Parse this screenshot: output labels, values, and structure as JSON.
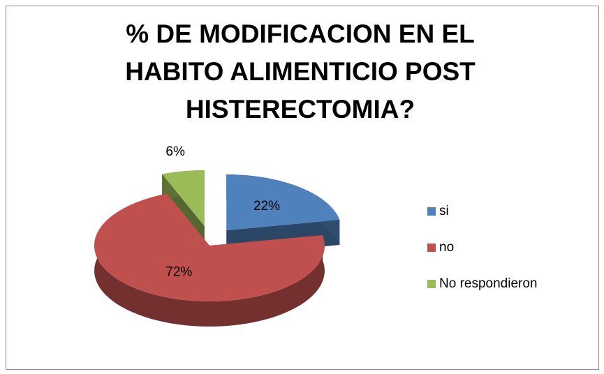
{
  "chart_data": {
    "type": "pie",
    "title": "% DE MODIFICACION EN EL HABITO ALIMENTICIO POST HISTERECTOMIA?",
    "categories": [
      "si",
      "no",
      "No respondieron"
    ],
    "values": [
      22,
      72,
      6
    ],
    "value_labels": [
      "22%",
      "72%",
      "6%"
    ],
    "colors": [
      "#4f81bd",
      "#c0504d",
      "#9bbb59"
    ],
    "legend": "right"
  }
}
